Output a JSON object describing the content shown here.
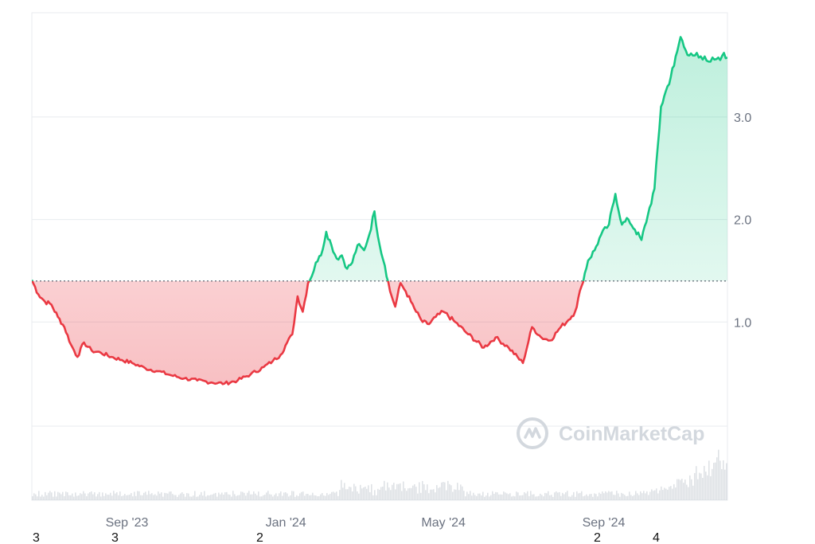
{
  "chart_data": {
    "type": "area",
    "title": "",
    "xlabel": "",
    "ylabel": "",
    "baseline": 1.4,
    "ylim": [
      0,
      3.95
    ],
    "grid": true,
    "y_ticks": [
      {
        "value": 1.0,
        "label": "1.0"
      },
      {
        "value": 2.0,
        "label": "2.0"
      },
      {
        "value": 3.0,
        "label": "3.0"
      }
    ],
    "x_ticks": [
      {
        "date": "2023-09-01",
        "label": "Sep '23"
      },
      {
        "date": "2024-01-01",
        "label": "Jan '24"
      },
      {
        "date": "2024-05-01",
        "label": "May '24"
      },
      {
        "date": "2024-09-01",
        "label": "Sep '24"
      }
    ],
    "x_range": [
      "2023-06-20",
      "2024-12-05"
    ],
    "series": [
      {
        "x": [
          "2023-06-20",
          "2023-06-25",
          "2023-06-30",
          "2023-07-05",
          "2023-07-10",
          "2023-07-15",
          "2023-07-20",
          "2023-07-25",
          "2023-07-30",
          "2023-08-05",
          "2023-08-12",
          "2023-08-20",
          "2023-08-28",
          "2023-09-05",
          "2023-09-15",
          "2023-09-25",
          "2023-10-05",
          "2023-10-15",
          "2023-10-25",
          "2023-11-05",
          "2023-11-15",
          "2023-11-25",
          "2023-12-05",
          "2023-12-15",
          "2023-12-22",
          "2023-12-28",
          "2024-01-02",
          "2024-01-06",
          "2024-01-10",
          "2024-01-14",
          "2024-01-18",
          "2024-01-21",
          "2024-01-24",
          "2024-01-28",
          "2024-02-01",
          "2024-02-05",
          "2024-02-09",
          "2024-02-13",
          "2024-02-17",
          "2024-02-21",
          "2024-02-25",
          "2024-03-01",
          "2024-03-05",
          "2024-03-09",
          "2024-03-13",
          "2024-03-17",
          "2024-03-21",
          "2024-03-25",
          "2024-03-29",
          "2024-04-02",
          "2024-04-06",
          "2024-04-10",
          "2024-04-15",
          "2024-04-20",
          "2024-04-25",
          "2024-05-01",
          "2024-05-10",
          "2024-05-20",
          "2024-06-01",
          "2024-06-10",
          "2024-06-20",
          "2024-07-01",
          "2024-07-08",
          "2024-07-15",
          "2024-07-22",
          "2024-07-30",
          "2024-08-05",
          "2024-08-10",
          "2024-08-15",
          "2024-08-20",
          "2024-08-25",
          "2024-08-30",
          "2024-09-05",
          "2024-09-10",
          "2024-09-15",
          "2024-09-20",
          "2024-09-25",
          "2024-09-30",
          "2024-10-05",
          "2024-10-10",
          "2024-10-15",
          "2024-10-20",
          "2024-10-25",
          "2024-10-30",
          "2024-11-03",
          "2024-11-07",
          "2024-11-10",
          "2024-11-13",
          "2024-11-16",
          "2024-11-19",
          "2024-11-22",
          "2024-11-25",
          "2024-11-28",
          "2024-12-01",
          "2024-12-05"
        ],
        "y": [
          1.41,
          1.27,
          1.2,
          1.17,
          1.05,
          0.95,
          0.78,
          0.66,
          0.8,
          0.72,
          0.7,
          0.66,
          0.63,
          0.6,
          0.55,
          0.52,
          0.48,
          0.45,
          0.43,
          0.41,
          0.4,
          0.43,
          0.49,
          0.56,
          0.62,
          0.68,
          0.8,
          0.88,
          1.25,
          1.1,
          1.38,
          1.45,
          1.58,
          1.65,
          1.88,
          1.75,
          1.62,
          1.65,
          1.52,
          1.58,
          1.75,
          1.7,
          1.85,
          2.08,
          1.75,
          1.55,
          1.3,
          1.15,
          1.38,
          1.3,
          1.2,
          1.1,
          1.0,
          0.98,
          1.05,
          1.1,
          1.0,
          0.88,
          0.75,
          0.85,
          0.75,
          0.6,
          0.95,
          0.85,
          0.82,
          0.95,
          1.02,
          1.1,
          1.35,
          1.6,
          1.7,
          1.85,
          1.95,
          2.25,
          1.95,
          2.0,
          1.9,
          1.8,
          2.05,
          2.3,
          3.1,
          3.3,
          3.5,
          3.78,
          3.65,
          3.62,
          3.6,
          3.58,
          3.56,
          3.55,
          3.54,
          3.56,
          3.58,
          3.6,
          3.58
        ]
      }
    ]
  },
  "watermark": {
    "brand": "CoinMarketCap",
    "icon": "coinmarketcap-logo-icon"
  },
  "edge_labels": [
    "3",
    "3",
    "2",
    "2",
    "4"
  ],
  "colors": {
    "above": "#16c784",
    "below": "#ea3943",
    "above_fill": "#16c784",
    "below_fill": "#ea3943",
    "grid": "#e8ebef",
    "baseline": "#4b5563",
    "volume": "#c9ced6",
    "tick_text": "#6b7280"
  }
}
